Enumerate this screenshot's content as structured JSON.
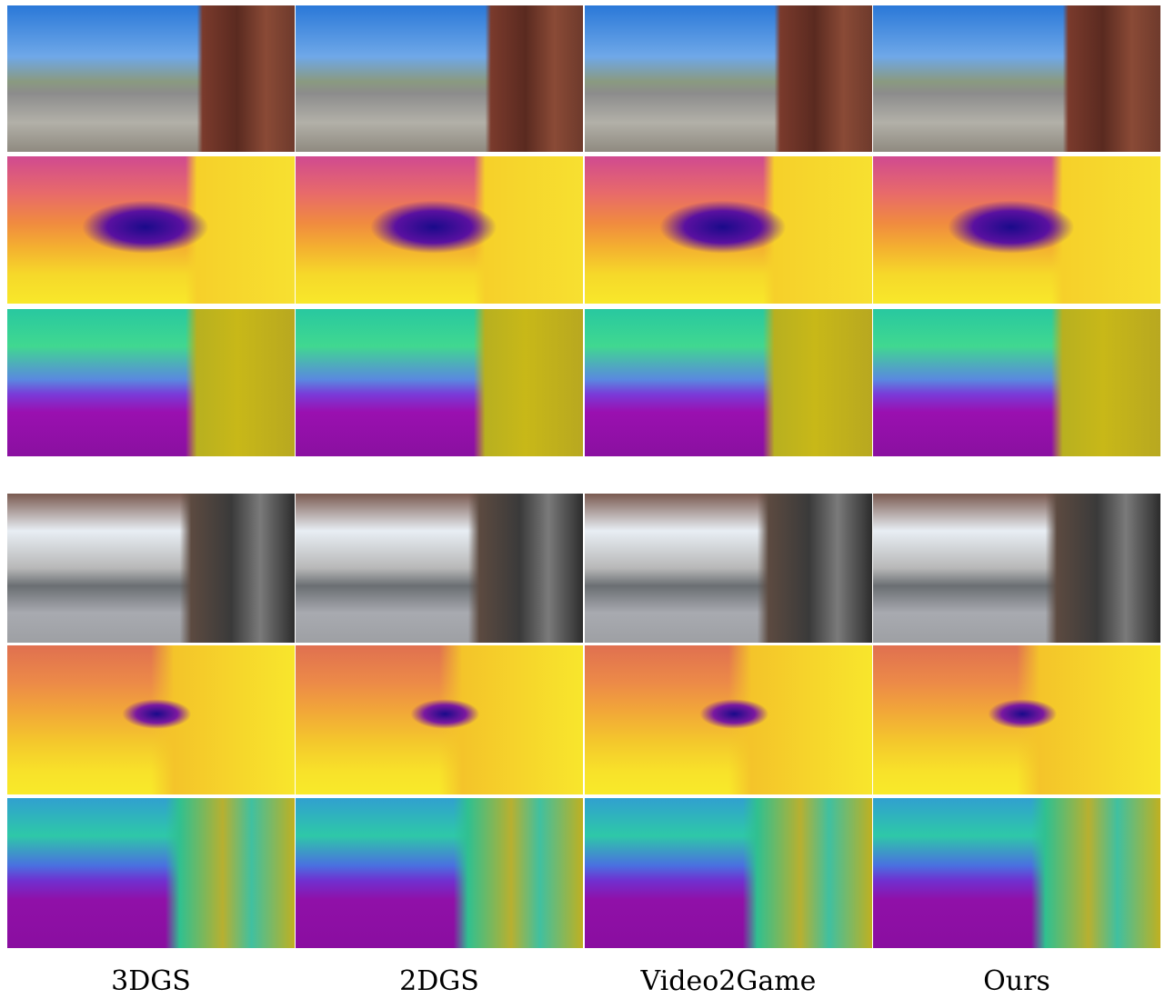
{
  "columns": [
    "3DGS",
    "2DGS",
    "Video2Game",
    "Ours"
  ]
}
